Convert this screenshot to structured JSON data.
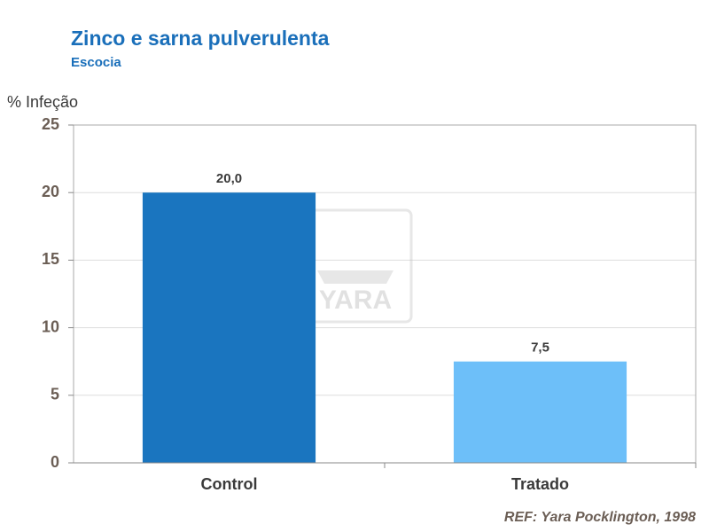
{
  "chart_data": {
    "type": "bar",
    "title": "Zinco e sarna pulverulenta",
    "subtitle": "Escocia",
    "y_label": "% Infeção",
    "reference": "REF: Yara Pocklington, 1998",
    "watermark": "YARA",
    "categories": [
      "Control",
      "Tratado"
    ],
    "values": [
      20.0,
      7.5
    ],
    "value_labels": [
      "20,0",
      "7,5"
    ],
    "colors": [
      "#1a75bf",
      "#6dbff9"
    ],
    "ylim": [
      0,
      25
    ],
    "yticks": [
      0,
      5,
      10,
      15,
      20,
      25
    ],
    "grid": true
  }
}
